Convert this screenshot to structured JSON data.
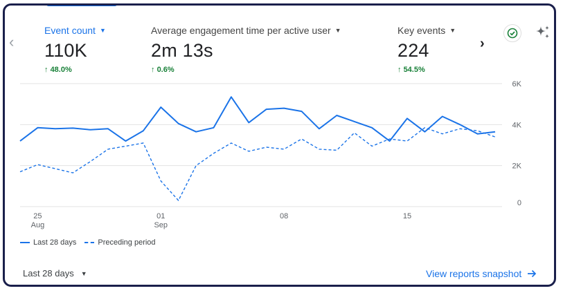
{
  "metrics": [
    {
      "label": "Event count",
      "value": "110K",
      "change": "48.0%",
      "active": true
    },
    {
      "label": "Average engagement time per active user",
      "value": "2m 13s",
      "change": "0.6%",
      "active": false
    },
    {
      "label": "Key events",
      "value": "224",
      "change": "54.5%",
      "active": false
    }
  ],
  "icons": {
    "prev": "chevron-left-icon",
    "next": "chevron-right-icon",
    "check": "check-circle-icon",
    "insights": "sparkle-icon",
    "dropdown": "caret-down-icon",
    "trend_up": "arrow-up-icon",
    "forward": "arrow-right-icon"
  },
  "colors": {
    "accent": "#1a73e8",
    "positive": "#188038",
    "border": "#1a1f4b"
  },
  "chart_data": {
    "type": "line",
    "x_ticks": [
      {
        "label": "25",
        "sub": "Aug",
        "index": 1
      },
      {
        "label": "01",
        "sub": "Sep",
        "index": 8
      },
      {
        "label": "08",
        "sub": "",
        "index": 15
      },
      {
        "label": "15",
        "sub": "",
        "index": 22
      }
    ],
    "y_ticks": [
      "6K",
      "4K",
      "2K",
      "0"
    ],
    "ylim": [
      0,
      6000
    ],
    "grid": true,
    "series": [
      {
        "name": "Last 28 days",
        "style": "solid",
        "values": [
          3200,
          3850,
          3800,
          3830,
          3750,
          3800,
          3200,
          3700,
          4850,
          4050,
          3650,
          3850,
          5350,
          4100,
          4750,
          4800,
          4650,
          3800,
          4450,
          4150,
          3850,
          3200,
          4300,
          3650,
          4400,
          4000,
          3550,
          3650
        ]
      },
      {
        "name": "Preceding period",
        "style": "dashed",
        "values": [
          1700,
          2050,
          1850,
          1650,
          2200,
          2800,
          2950,
          3100,
          1250,
          300,
          2000,
          2600,
          3100,
          2700,
          2900,
          2800,
          3300,
          2800,
          2750,
          3600,
          2950,
          3300,
          3200,
          3850,
          3550,
          3800,
          3700,
          3400
        ]
      }
    ]
  },
  "footer": {
    "date_range": "Last 28 days",
    "snapshot_link": "View reports snapshot"
  }
}
